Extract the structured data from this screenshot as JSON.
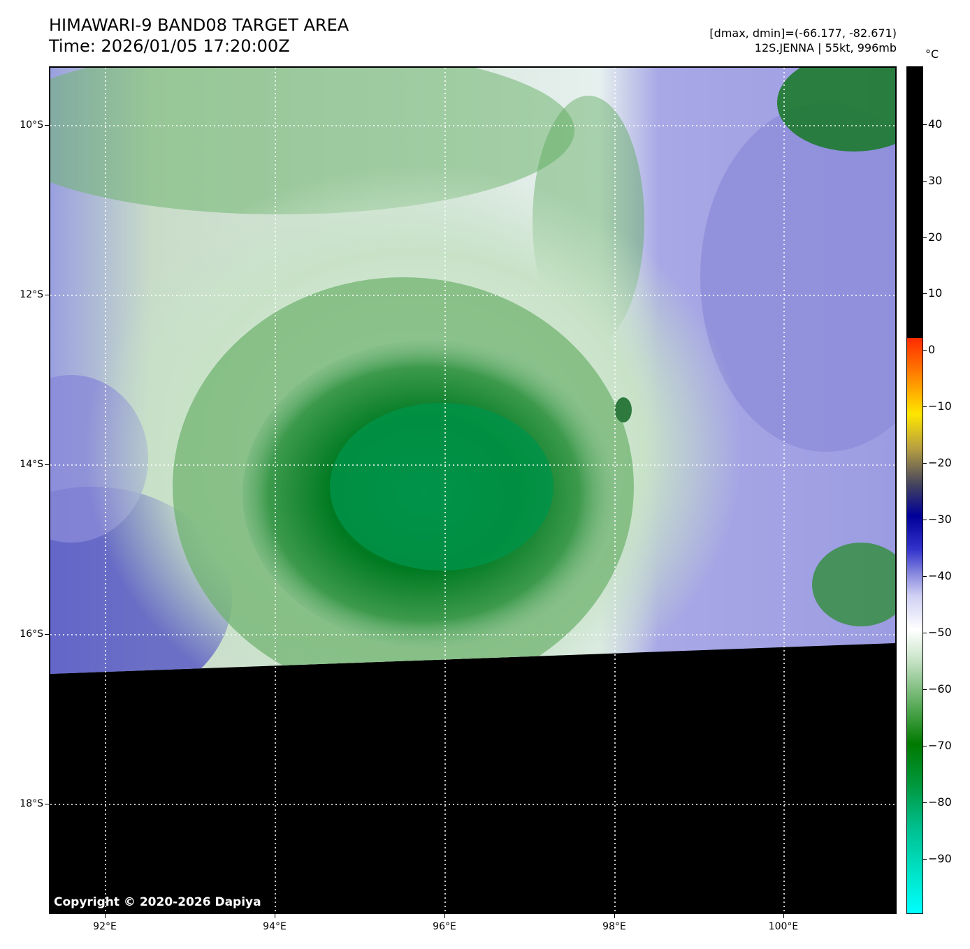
{
  "title": {
    "line1": "HIMAWARI-9 BAND08 TARGET AREA",
    "line2": "Time: 2026/01/05 17:20:00Z"
  },
  "info": {
    "range": "[dmax, dmin]=(-66.177, -82.671)",
    "storm": "12S.JENNA | 55kt, 996mb"
  },
  "copyright": "Copyright © 2020-2026 Dapiya",
  "axes": {
    "x_ticks": [
      "92°E",
      "94°E",
      "96°E",
      "98°E",
      "100°E"
    ],
    "y_ticks": [
      "10°S",
      "12°S",
      "14°S",
      "16°S",
      "18°S"
    ]
  },
  "colorbar": {
    "unit": "°C",
    "ticks": [
      "40",
      "30",
      "20",
      "10",
      "0",
      "−10",
      "−20",
      "−30",
      "−40",
      "−50",
      "−60",
      "−70",
      "−80",
      "−90"
    ],
    "colors": {
      "warm": "#000000",
      "cold_green": "#007a00",
      "mid_white": "#ffffff",
      "lavender": "#8c8ce0",
      "coldest": "#00ffff"
    }
  }
}
